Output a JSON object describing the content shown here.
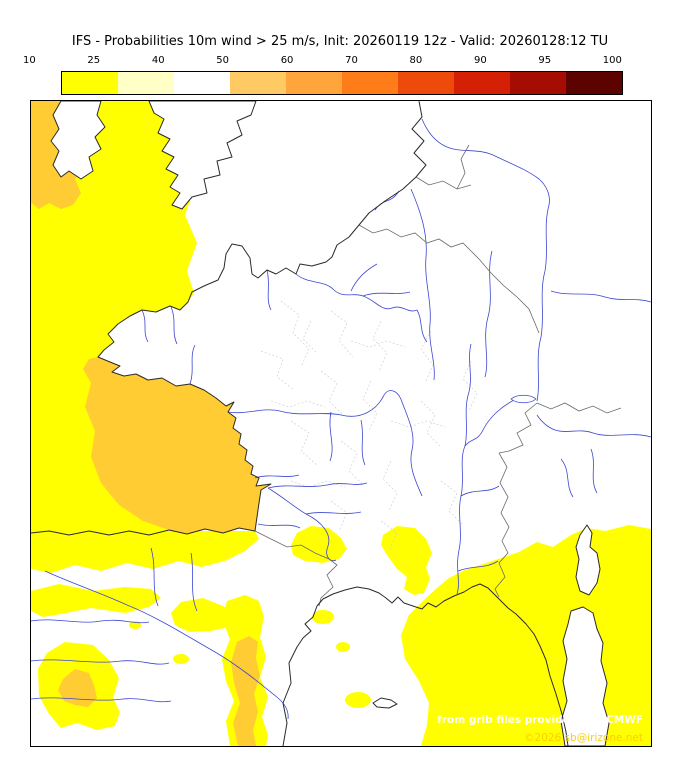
{
  "title": "IFS - Probabilities 10m wind > 25 m/s, Init: 20260119 12z - Valid: 20260128:12 TU",
  "legend": {
    "ticks": [
      "10",
      "25",
      "40",
      "50",
      "60",
      "70",
      "80",
      "90",
      "95",
      "100"
    ],
    "colors": [
      "#ffff00",
      "#ffffc6",
      "#ffedа0",
      "#ffc964",
      "#ffa53c",
      "#ff7d18",
      "#ee4a0c",
      "#d42105",
      "#a60d02",
      "#5c0300"
    ]
  },
  "map": {
    "credits": {
      "line1": "from grib files provided by ECMWF",
      "line2": "©2026 sb@irizone.net"
    },
    "colors": {
      "sea_low": "#ffff00",
      "sea_mid": "#ffcc33",
      "river": "#3c46d2",
      "coast": "#2a2a2a",
      "border": "#6a6a6a",
      "department": "#c9c9c9",
      "credit1": "#ffffff",
      "credit2": "#ffce00"
    }
  }
}
